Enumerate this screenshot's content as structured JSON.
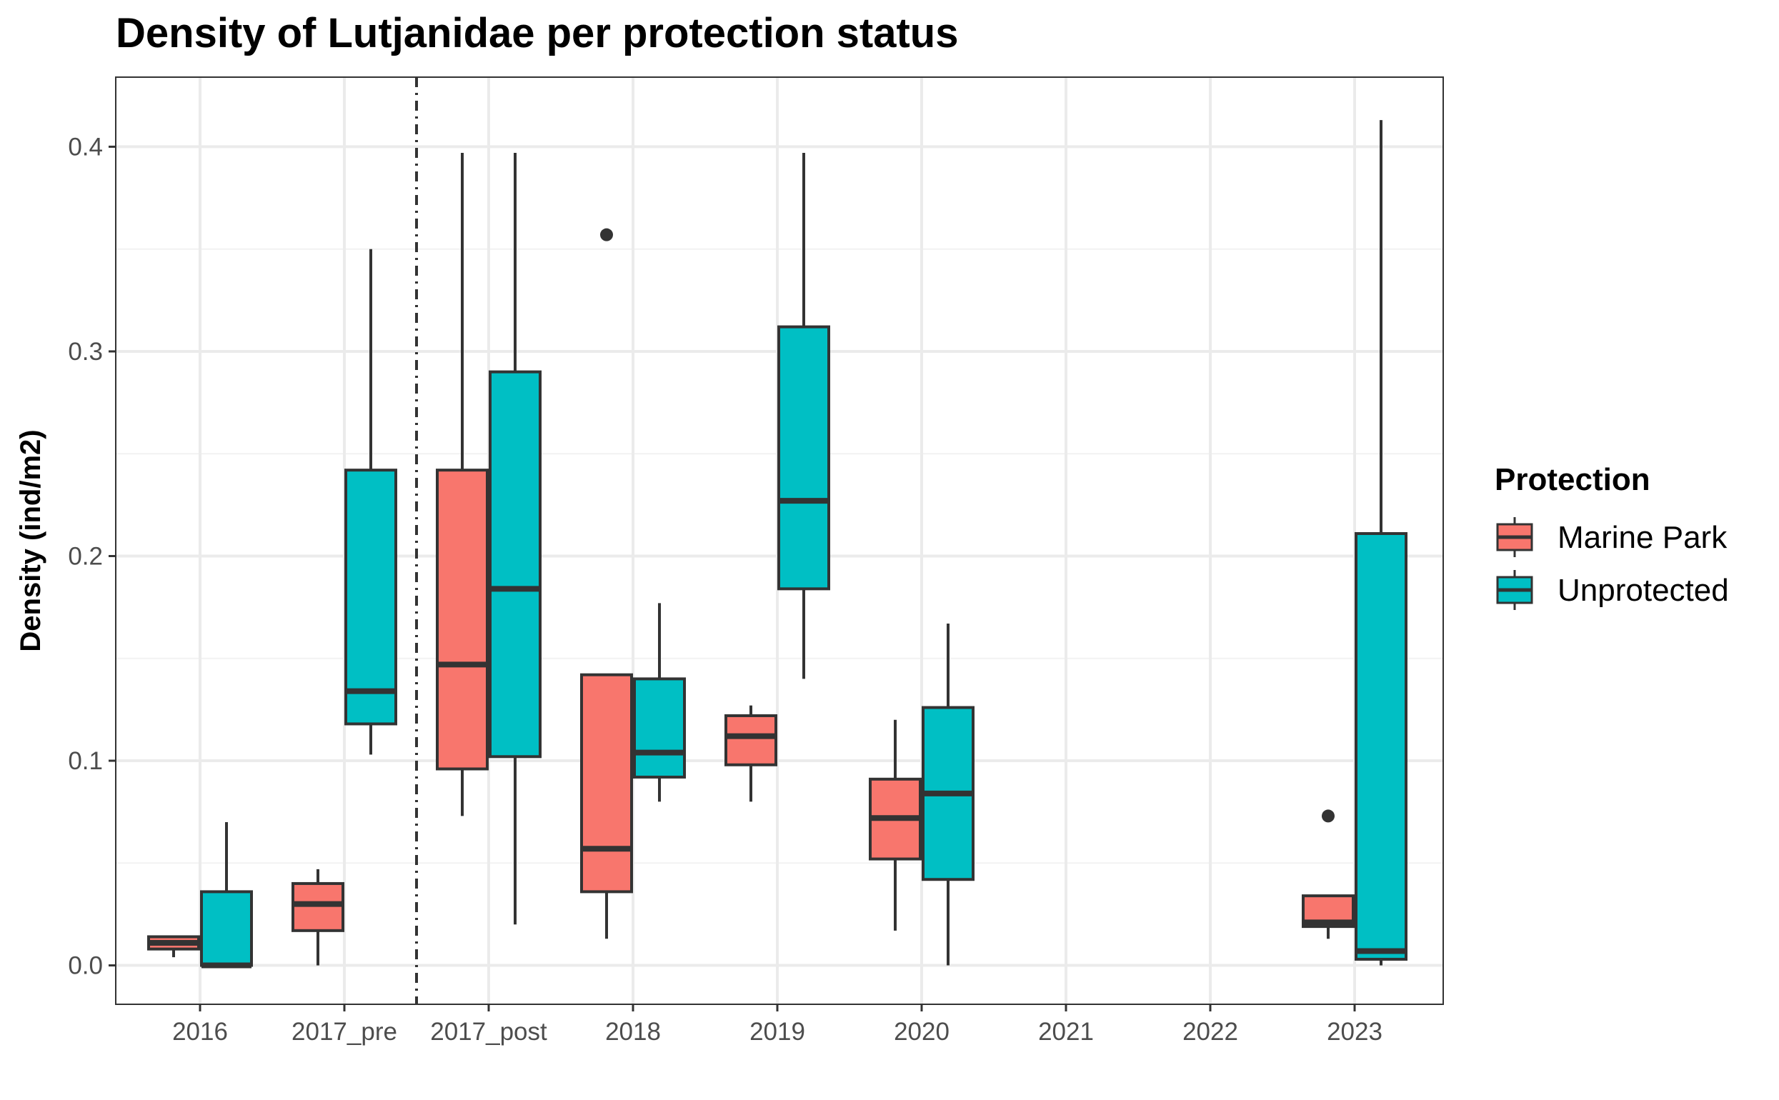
{
  "chart_data": {
    "type": "box",
    "title": "Density of Lutjanidae per protection status",
    "xlabel": "",
    "ylabel": "Density (ind/m2)",
    "categories": [
      "2016",
      "2017_pre",
      "2017_post",
      "2018",
      "2019",
      "2020",
      "2021",
      "2022",
      "2023"
    ],
    "ylim": [
      -0.019,
      0.434
    ],
    "yticks": [
      0.0,
      0.1,
      0.2,
      0.3,
      0.4
    ],
    "ytick_labels": [
      "0.0",
      "0.1",
      "0.2",
      "0.3",
      "0.4"
    ],
    "grid": true,
    "vline": {
      "after_category": "2017_pre",
      "style": "dashdot"
    },
    "legend": {
      "title": "Protection",
      "position": "right",
      "entries": [
        "Marine Park",
        "Unprotected"
      ]
    },
    "colors": {
      "Marine Park": "#F8766D",
      "Unprotected": "#00BFC4"
    },
    "series": [
      {
        "name": "Marine Park",
        "boxes": [
          {
            "category": "2016",
            "min": 0.004,
            "q1": 0.008,
            "median": 0.011,
            "q3": 0.014,
            "max": 0.014,
            "outliers": []
          },
          {
            "category": "2017_pre",
            "min": 0.0,
            "q1": 0.017,
            "median": 0.03,
            "q3": 0.04,
            "max": 0.047,
            "outliers": []
          },
          {
            "category": "2017_post",
            "min": 0.073,
            "q1": 0.096,
            "median": 0.147,
            "q3": 0.242,
            "max": 0.397,
            "outliers": []
          },
          {
            "category": "2018",
            "min": 0.013,
            "q1": 0.036,
            "median": 0.057,
            "q3": 0.142,
            "max": 0.142,
            "outliers": [
              0.357
            ]
          },
          {
            "category": "2019",
            "min": 0.08,
            "q1": 0.098,
            "median": 0.112,
            "q3": 0.122,
            "max": 0.127,
            "outliers": []
          },
          {
            "category": "2020",
            "min": 0.017,
            "q1": 0.052,
            "median": 0.072,
            "q3": 0.091,
            "max": 0.12,
            "outliers": []
          },
          {
            "category": "2023",
            "min": 0.013,
            "q1": 0.019,
            "median": 0.021,
            "q3": 0.034,
            "max": 0.034,
            "outliers": [
              0.073
            ]
          }
        ]
      },
      {
        "name": "Unprotected",
        "boxes": [
          {
            "category": "2016",
            "min": 0.0,
            "q1": 0.0,
            "median": 0.0,
            "q3": 0.036,
            "max": 0.07,
            "outliers": []
          },
          {
            "category": "2017_pre",
            "min": 0.103,
            "q1": 0.118,
            "median": 0.134,
            "q3": 0.242,
            "max": 0.35,
            "outliers": []
          },
          {
            "category": "2017_post",
            "min": 0.02,
            "q1": 0.102,
            "median": 0.184,
            "q3": 0.29,
            "max": 0.397,
            "outliers": []
          },
          {
            "category": "2018",
            "min": 0.08,
            "q1": 0.092,
            "median": 0.104,
            "q3": 0.14,
            "max": 0.177,
            "outliers": []
          },
          {
            "category": "2019",
            "min": 0.14,
            "q1": 0.184,
            "median": 0.227,
            "q3": 0.312,
            "max": 0.397,
            "outliers": []
          },
          {
            "category": "2020",
            "min": 0.0,
            "q1": 0.042,
            "median": 0.084,
            "q3": 0.126,
            "max": 0.167,
            "outliers": []
          },
          {
            "category": "2023",
            "min": 0.0,
            "q1": 0.003,
            "median": 0.007,
            "q3": 0.211,
            "max": 0.413,
            "outliers": []
          }
        ]
      }
    ]
  }
}
